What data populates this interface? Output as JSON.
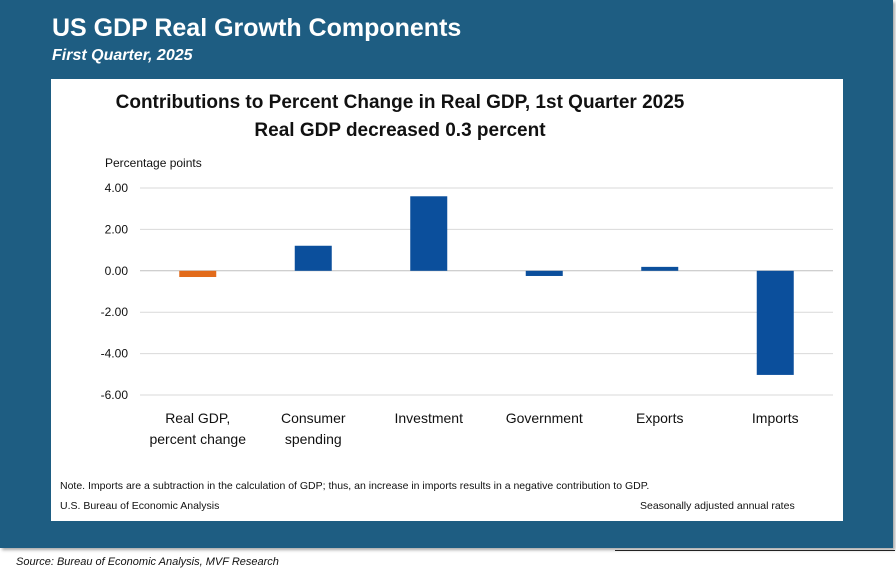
{
  "header": {
    "title": "US GDP Real Growth Components",
    "subtitle": "First Quarter, 2025"
  },
  "chart": {
    "title_line1": "Contributions to Percent Change in Real GDP, 1st Quarter 2025",
    "title_line2": "Real GDP decreased 0.3 percent",
    "ylabel": "Percentage points",
    "note": "Note. Imports are a subtraction in the calculation of GDP; thus, an increase in imports results in a negative contribution to GDP.",
    "source_left": "U.S. Bureau of Economic Analysis",
    "source_right": "Seasonally adjusted annual rates"
  },
  "footer": {
    "source": "Source: Bureau of Economic Analysis, MVF Research"
  },
  "colors": {
    "frame": "#1e5d82",
    "bar": "#0b4f9c",
    "highlight": "#e26b1b",
    "grid": "#d9d9d9"
  },
  "chart_data": {
    "type": "bar",
    "categories": [
      [
        "Real GDP,",
        "percent change"
      ],
      [
        "Consumer",
        "spending"
      ],
      [
        "Investment"
      ],
      [
        "Government"
      ],
      [
        "Exports"
      ],
      [
        "Imports"
      ]
    ],
    "values": [
      -0.3,
      1.21,
      3.6,
      -0.25,
      0.19,
      -5.03
    ],
    "highlight_index": 0,
    "yticks": [
      "4.00",
      "2.00",
      "0.00",
      "-2.00",
      "-4.00",
      "-6.00"
    ],
    "ylim": [
      -6,
      4
    ],
    "grid": true,
    "legend": "none"
  }
}
